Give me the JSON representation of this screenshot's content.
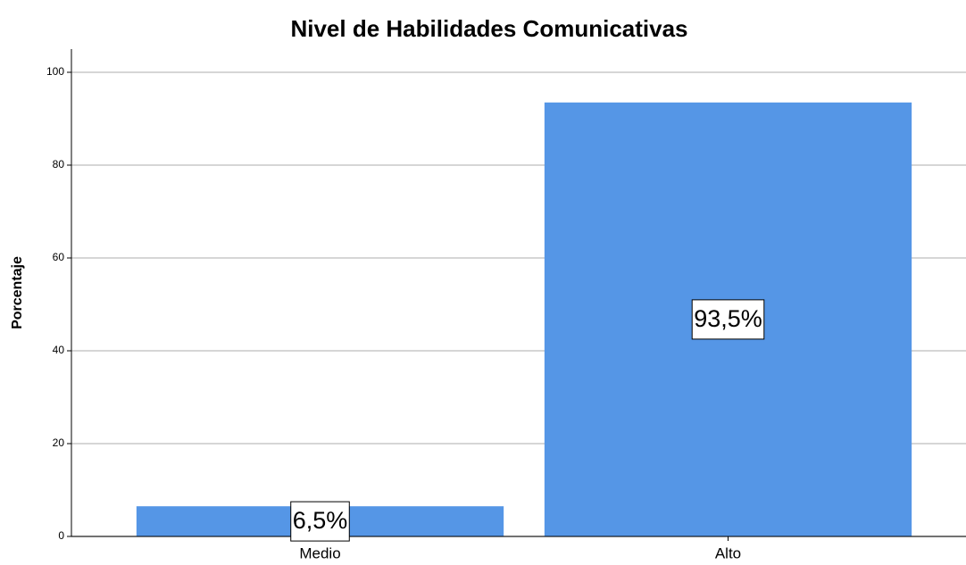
{
  "chart_data": {
    "type": "bar",
    "title": "Nivel de Habilidades Comunicativas",
    "y_axis_label": "Porcentaje",
    "categories": [
      "Medio",
      "Alto"
    ],
    "values": [
      6.5,
      93.5
    ],
    "value_labels": [
      "6,5%",
      "93,5%"
    ],
    "color": "#5596e6",
    "ylim": [
      0,
      105
    ],
    "yticks": [
      0,
      20,
      40,
      60,
      80,
      100
    ],
    "grid": true
  }
}
